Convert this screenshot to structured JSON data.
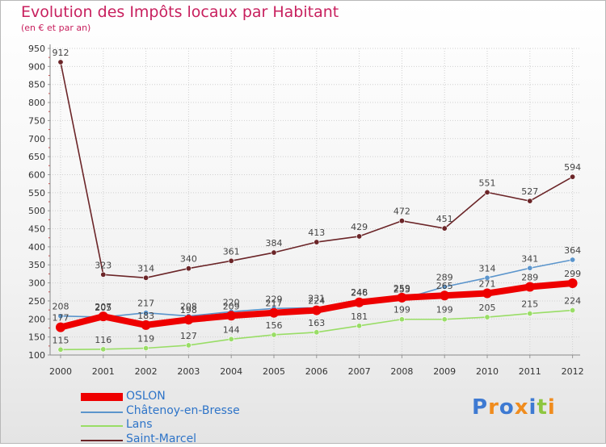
{
  "chart_data": {
    "type": "line",
    "title": "Evolution des Impôts locaux par Habitant",
    "subtitle": "(en € et par an)",
    "xlabel": "",
    "ylabel": "",
    "x": [
      "2000",
      "2001",
      "2002",
      "2003",
      "2004",
      "2005",
      "2006",
      "2007",
      "2008",
      "2009",
      "2010",
      "2011",
      "2012"
    ],
    "ylim": [
      100,
      950
    ],
    "yticks": [
      100,
      150,
      200,
      250,
      300,
      350,
      400,
      450,
      500,
      550,
      600,
      650,
      700,
      750,
      800,
      850,
      900,
      950
    ],
    "grid": true,
    "legend_position": "bottom-left",
    "series": [
      {
        "name": "OSLON",
        "color": "#ee0000",
        "values": [
          177,
          207,
          183,
          198,
          209,
          217,
          224,
          246,
          259,
          265,
          271,
          289,
          299
        ]
      },
      {
        "name": "Châtenoy-en-Bresse",
        "color": "#5b95cc",
        "values": [
          208,
          205,
          217,
          208,
          220,
          229,
          231,
          248,
          255,
          289,
          314,
          341,
          364
        ]
      },
      {
        "name": "Lans",
        "color": "#99dd66",
        "values": [
          115,
          116,
          119,
          127,
          144,
          156,
          163,
          181,
          199,
          199,
          205,
          215,
          224
        ]
      },
      {
        "name": "Saint-Marcel",
        "color": "#6b2528",
        "values": [
          912,
          323,
          314,
          340,
          361,
          384,
          413,
          429,
          472,
          451,
          551,
          527,
          594
        ]
      }
    ]
  },
  "logo": {
    "text": "Proxiti",
    "colors": [
      "#3e7ad2",
      "#f08c1e",
      "#3e7ad2",
      "#f08c1e",
      "#3e7ad2",
      "#8dc63f",
      "#f08c1e"
    ]
  }
}
